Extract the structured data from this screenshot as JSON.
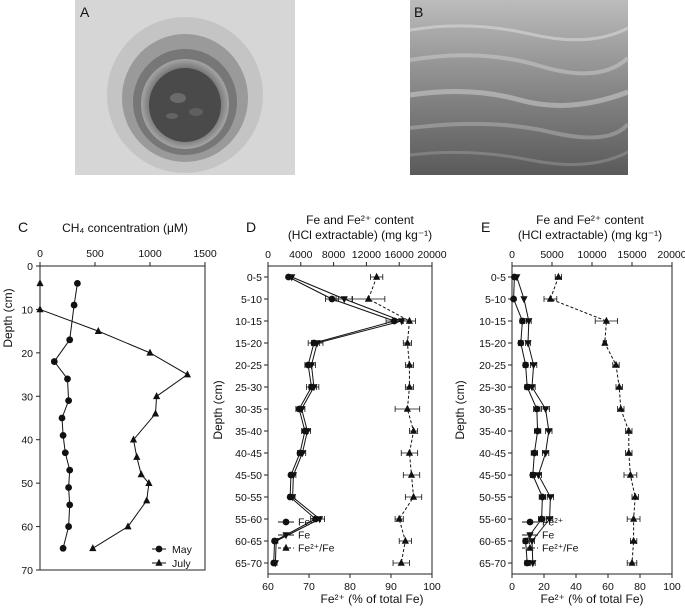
{
  "panel_labels": {
    "A": "A",
    "B": "B",
    "C": "C",
    "D": "D",
    "E": "E"
  },
  "photos": {
    "A": {
      "kind": "core-hole-in-ice"
    },
    "B": {
      "kind": "water-surface"
    }
  },
  "chart_data": [
    {
      "panel": "C",
      "type": "line",
      "title": "",
      "top_axis_label": "CH₄ concentration (μM)",
      "ylabel": "Depth (cm)",
      "xlim": [
        0,
        1500
      ],
      "ylim": [
        0,
        70
      ],
      "xticks": [
        0,
        500,
        1000,
        1500
      ],
      "yticks": [
        0,
        10,
        20,
        30,
        40,
        50,
        60,
        70
      ],
      "series": [
        {
          "name": "May",
          "marker": "circle",
          "x": [
            340,
            310,
            270,
            130,
            250,
            260,
            200,
            210,
            230,
            270,
            260,
            270,
            260,
            210
          ],
          "y": [
            4,
            9,
            17,
            22,
            26,
            31,
            35,
            39,
            43,
            47,
            51,
            55,
            60,
            65
          ]
        },
        {
          "name": "July",
          "marker": "triangle",
          "x": [
            0,
            0,
            530,
            1000,
            1340,
            1060,
            1050,
            850,
            880,
            920,
            990,
            970,
            800,
            480
          ],
          "y": [
            4,
            10,
            15,
            20,
            25,
            30,
            34,
            40,
            44,
            48,
            50,
            54,
            60,
            65
          ]
        }
      ],
      "legend": "bottom-right"
    },
    {
      "panel": "D",
      "type": "line",
      "top_axis_label_1": "Fe and Fe²⁺ content",
      "top_axis_label_2": "(HCl extractable) (mg kg⁻¹)",
      "xlabel": "Fe²⁺ (% of total Fe)",
      "categories": [
        "0-5",
        "5-10",
        "10-15",
        "15-20",
        "20-25",
        "25-30",
        "30-35",
        "35-40",
        "40-45",
        "45-50",
        "50-55",
        "55-60",
        "60-65",
        "65-70"
      ],
      "top_xlim": [
        0,
        20000
      ],
      "top_xticks": [
        0,
        4000,
        8000,
        12000,
        16000,
        20000
      ],
      "bottom_xlim": [
        60,
        100
      ],
      "bottom_xticks": [
        60,
        70,
        80,
        90,
        100
      ],
      "series": [
        {
          "name": "Fe²⁺",
          "marker": "circle",
          "axis": "top",
          "x": [
            2500,
            7800,
            15400,
            5600,
            4900,
            5300,
            3800,
            4500,
            3900,
            2800,
            2700,
            5800,
            800,
            700
          ],
          "err": [
            0,
            800,
            1000,
            700,
            400,
            600,
            400,
            400,
            300,
            200,
            200,
            600,
            200,
            200
          ]
        },
        {
          "name": "Fe",
          "marker": "triangle-down",
          "axis": "top",
          "x": [
            2900,
            9300,
            16300,
            6000,
            5300,
            5600,
            4100,
            4800,
            4200,
            3100,
            3000,
            6300,
            1000,
            900
          ],
          "err": [
            0,
            1000,
            1000,
            700,
            500,
            600,
            400,
            400,
            400,
            300,
            300,
            600,
            200,
            200
          ]
        },
        {
          "name": "Fe²⁺/Fe",
          "marker": "triangle",
          "axis": "bottom",
          "x": [
            86.5,
            84.5,
            94.5,
            94,
            94.5,
            94.5,
            94,
            95.5,
            94.5,
            95,
            95.5,
            92,
            93.5,
            92.5
          ],
          "err": [
            1.5,
            4,
            1.5,
            1,
            1,
            1,
            3,
            1,
            2,
            2,
            2,
            1,
            1.5,
            2
          ]
        }
      ],
      "legend": "bottom-left"
    },
    {
      "panel": "E",
      "type": "line",
      "top_axis_label_1": "Fe and Fe²⁺ content",
      "top_axis_label_2": "(HCl extractable) (mg kg⁻¹)",
      "xlabel": "Fe²⁺ (% of total Fe)",
      "categories": [
        "0-5",
        "5-10",
        "10-15",
        "15-20",
        "20-25",
        "25-30",
        "30-35",
        "35-40",
        "40-45",
        "45-50",
        "50-55",
        "55-60",
        "60-65",
        "65-70"
      ],
      "top_xlim": [
        0,
        20000
      ],
      "top_xticks": [
        0,
        5000,
        10000,
        15000,
        20000
      ],
      "bottom_xlim": [
        0,
        100
      ],
      "bottom_xticks": [
        0,
        20,
        40,
        60,
        80,
        100
      ],
      "series": [
        {
          "name": "Fe²⁺",
          "marker": "circle",
          "axis": "top",
          "x": [
            300,
            200,
            1300,
            1100,
            1700,
            1900,
            3100,
            3200,
            2800,
            2600,
            3800,
            3700,
            1700,
            1900
          ],
          "err": [
            0,
            0,
            300,
            300,
            300,
            300,
            400,
            400,
            400,
            300,
            400,
            400,
            300,
            300
          ]
        },
        {
          "name": "Fe",
          "marker": "triangle-down",
          "axis": "top",
          "x": [
            600,
            1500,
            2100,
            2000,
            2700,
            2500,
            4200,
            4600,
            4200,
            3300,
            4800,
            4700,
            2500,
            2600
          ],
          "err": [
            0,
            0,
            300,
            300,
            400,
            400,
            500,
            400,
            400,
            400,
            400,
            400,
            300,
            300
          ]
        },
        {
          "name": "Fe²⁺/Fe",
          "marker": "triangle",
          "axis": "bottom",
          "x": [
            29,
            24,
            59,
            58,
            65,
            67,
            68,
            73,
            73,
            74,
            77,
            76,
            76,
            75
          ],
          "err": [
            2,
            4,
            7,
            1,
            2,
            2,
            2,
            2,
            2,
            4,
            2,
            4,
            2,
            3
          ]
        }
      ],
      "legend": "bottom-left"
    }
  ]
}
